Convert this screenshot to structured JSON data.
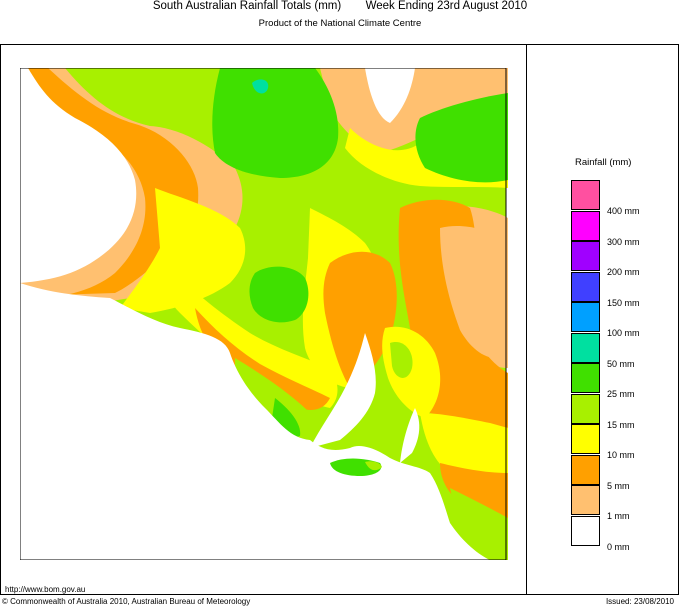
{
  "header": {
    "title": "South Australian Rainfall Totals (mm)",
    "period": "Week Ending 23rd August 2010",
    "subtitle": "Product of the National Climate Centre"
  },
  "legend": {
    "title": "Rainfall (mm)",
    "items": [
      {
        "label": "400 mm",
        "color": "#ff50a0"
      },
      {
        "label": "300 mm",
        "color": "#ff00ff"
      },
      {
        "label": "200 mm",
        "color": "#a000ff"
      },
      {
        "label": "150 mm",
        "color": "#4040ff"
      },
      {
        "label": "100 mm",
        "color": "#00a0ff"
      },
      {
        "label": "50 mm",
        "color": "#00e0a0"
      },
      {
        "label": "25 mm",
        "color": "#40e000"
      },
      {
        "label": "15 mm",
        "color": "#a8f000"
      },
      {
        "label": "10 mm",
        "color": "#ffff00"
      },
      {
        "label": "5 mm",
        "color": "#ffa000"
      },
      {
        "label": "1 mm",
        "color": "#ffc070"
      },
      {
        "label": "0 mm",
        "color": "#ffffff"
      }
    ]
  },
  "footer": {
    "url": "http://www.bom.gov.au",
    "copyright": "© Commonwealth of Australia 2010, Australian Bureau of Meteorology",
    "issued": "Issued: 23/08/2010"
  }
}
